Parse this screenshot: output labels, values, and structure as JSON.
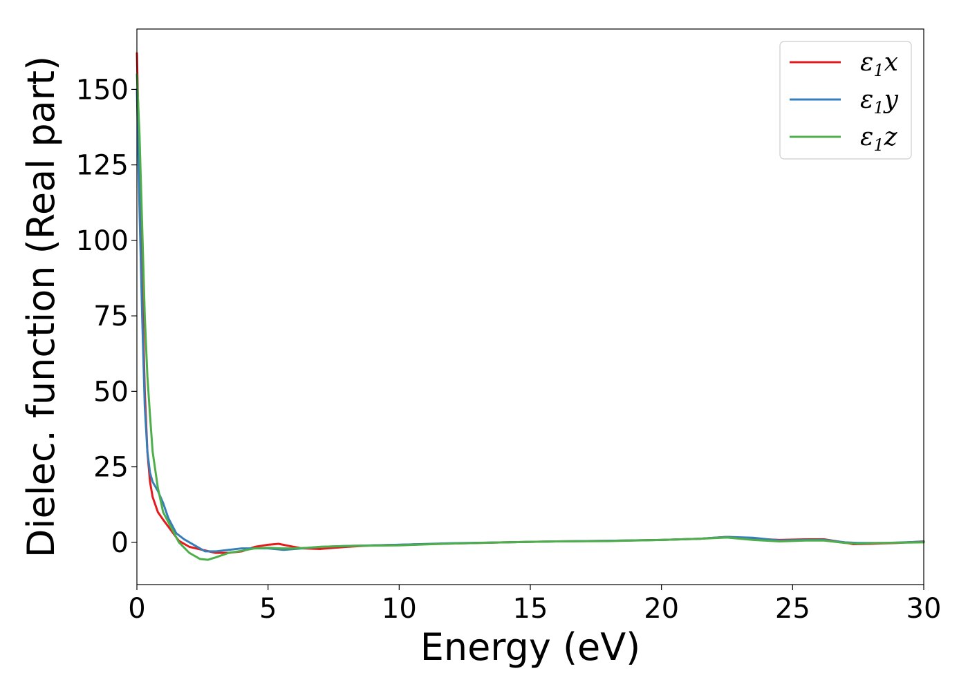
{
  "chart_data": {
    "type": "line",
    "title": "",
    "xlabel": "Energy (eV)",
    "ylabel": "Dielec. function (Real part)",
    "xlim": [
      0,
      30
    ],
    "ylim": [
      -14,
      170
    ],
    "xticks": [
      0,
      5,
      10,
      15,
      20,
      25,
      30
    ],
    "yticks": [
      0,
      25,
      50,
      75,
      100,
      125,
      150
    ],
    "grid": false,
    "legend_position": "top-right",
    "colors": {
      "x": "#e41a1c",
      "y": "#377eb8",
      "z": "#4daf4a"
    },
    "legend": [
      {
        "base": "ε",
        "sub": "1",
        "suffix": "x"
      },
      {
        "base": "ε",
        "sub": "1",
        "suffix": "y"
      },
      {
        "base": "ε",
        "sub": "1",
        "suffix": "z"
      }
    ],
    "series": [
      {
        "key": "x",
        "x": [
          0,
          0.1,
          0.2,
          0.3,
          0.4,
          0.5,
          0.6,
          0.8,
          1.0,
          1.3,
          1.6,
          2.0,
          2.5,
          3.0,
          3.5,
          4.0,
          4.5,
          5.0,
          5.4,
          5.8,
          6.3,
          7.0,
          8.0,
          9.0,
          10.0,
          12.0,
          14.0,
          16.0,
          18.0,
          20.0,
          21.5,
          22.5,
          23.5,
          24.5,
          25.5,
          26.2,
          26.8,
          27.3,
          28.0,
          29.0,
          30.0
        ],
        "y": [
          162,
          125,
          85,
          50,
          30,
          20,
          15,
          10,
          7.5,
          4,
          0.5,
          -1.5,
          -2.5,
          -3.5,
          -3.5,
          -3,
          -1.5,
          -0.8,
          -0.5,
          -1.2,
          -2,
          -2.2,
          -1.5,
          -1,
          -0.8,
          -0.4,
          0,
          0.3,
          0.5,
          0.8,
          1.2,
          1.8,
          1.2,
          0.8,
          1.0,
          1.0,
          0.2,
          -0.6,
          -0.5,
          -0.2,
          0.3
        ]
      },
      {
        "key": "y",
        "x": [
          0,
          0.1,
          0.2,
          0.3,
          0.4,
          0.5,
          0.6,
          0.8,
          1.0,
          1.2,
          1.5,
          1.8,
          2.2,
          2.6,
          3.0,
          3.5,
          4.0,
          4.5,
          5.0,
          5.6,
          6.3,
          7.0,
          8.0,
          9.0,
          10.0,
          12.0,
          14.0,
          16.0,
          18.0,
          20.0,
          21.5,
          22.5,
          23.5,
          24.5,
          25.5,
          26.2,
          27.0,
          27.5,
          28.5,
          30.0
        ],
        "y": [
          150,
          110,
          75,
          45,
          30,
          23,
          20,
          17,
          13,
          8,
          3,
          1,
          -1,
          -3,
          -3,
          -2.5,
          -2,
          -2,
          -2,
          -2.5,
          -2,
          -1.5,
          -1.2,
          -1,
          -0.8,
          -0.3,
          0,
          0.3,
          0.5,
          0.8,
          1.2,
          1.8,
          1.5,
          0.6,
          0.8,
          0.8,
          0,
          -0.2,
          -0.2,
          0.2
        ]
      },
      {
        "key": "z",
        "x": [
          0,
          0.1,
          0.2,
          0.3,
          0.4,
          0.5,
          0.6,
          0.8,
          1.0,
          1.3,
          1.6,
          2.0,
          2.4,
          2.7,
          3.0,
          3.5,
          4.0,
          4.5,
          5.0,
          5.5,
          6.0,
          6.5,
          7.0,
          8.0,
          9.0,
          10.0,
          12.0,
          14.0,
          16.0,
          18.0,
          20.0,
          21.5,
          22.5,
          23.5,
          24.5,
          25.5,
          26.2,
          27.0,
          27.5,
          28.5,
          30.0
        ],
        "y": [
          155,
          135,
          105,
          75,
          55,
          42,
          30,
          18,
          10,
          5,
          0,
          -3.5,
          -5.5,
          -5.8,
          -5,
          -3.5,
          -2.8,
          -2,
          -1.8,
          -2,
          -2,
          -1.8,
          -1.5,
          -1.2,
          -1.1,
          -1,
          -0.4,
          0,
          0.3,
          0.4,
          0.8,
          1.2,
          1.6,
          0.8,
          0.3,
          0.6,
          0.6,
          -0.2,
          -0.4,
          -0.2,
          0
        ]
      }
    ]
  }
}
